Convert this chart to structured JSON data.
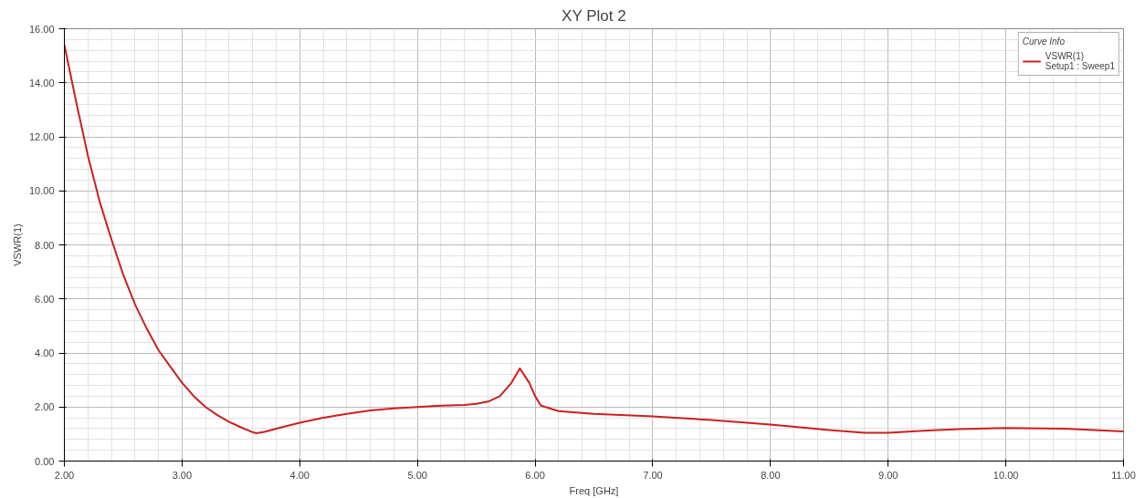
{
  "chart_data": {
    "type": "line",
    "title": "XY Plot 2",
    "xlabel": "Freq [GHz]",
    "ylabel": "VSWR(1)",
    "legend_title": "Curve Info",
    "legend": "top right",
    "grid": true,
    "line_style": "solid",
    "marker": "none",
    "xlim": [
      2,
      11
    ],
    "ylim": [
      0,
      16
    ],
    "xticks": [
      {
        "value": 2,
        "label": "2.00"
      },
      {
        "value": 3,
        "label": "3.00"
      },
      {
        "value": 4,
        "label": "4.00"
      },
      {
        "value": 5,
        "label": "5.00"
      },
      {
        "value": 6,
        "label": "6.00"
      },
      {
        "value": 7,
        "label": "7.00"
      },
      {
        "value": 8,
        "label": "8.00"
      },
      {
        "value": 9,
        "label": "9.00"
      },
      {
        "value": 10,
        "label": "10.00"
      },
      {
        "value": 11,
        "label": "11.00"
      }
    ],
    "yticks": [
      {
        "value": 0,
        "label": "0.00"
      },
      {
        "value": 2,
        "label": "2.00"
      },
      {
        "value": 4,
        "label": "4.00"
      },
      {
        "value": 6,
        "label": "6.00"
      },
      {
        "value": 8,
        "label": "8.00"
      },
      {
        "value": 10,
        "label": "10.00"
      },
      {
        "value": 12,
        "label": "12.00"
      },
      {
        "value": 14,
        "label": "14.00"
      },
      {
        "value": 16,
        "label": "16.00"
      }
    ],
    "x": [
      2.0,
      2.1,
      2.2,
      2.3,
      2.4,
      2.5,
      2.6,
      2.7,
      2.8,
      2.9,
      3.0,
      3.1,
      3.2,
      3.3,
      3.4,
      3.5,
      3.6,
      3.63,
      3.7,
      3.8,
      4.0,
      4.2,
      4.4,
      4.6,
      4.8,
      5.0,
      5.2,
      5.4,
      5.5,
      5.6,
      5.7,
      5.8,
      5.87,
      5.95,
      6.0,
      6.05,
      6.2,
      6.5,
      7.0,
      7.5,
      8.0,
      8.5,
      8.8,
      9.0,
      9.3,
      9.6,
      10.0,
      10.5,
      11.0
    ],
    "series": [
      {
        "name": "VSWR(1)\nSetup1 : Sweep1",
        "color": "#cc1f1f",
        "values": [
          15.4,
          13.3,
          11.3,
          9.6,
          8.2,
          6.9,
          5.8,
          4.9,
          4.1,
          3.5,
          2.9,
          2.4,
          2.0,
          1.7,
          1.45,
          1.25,
          1.07,
          1.03,
          1.08,
          1.2,
          1.42,
          1.6,
          1.75,
          1.87,
          1.95,
          2.0,
          2.05,
          2.08,
          2.12,
          2.2,
          2.4,
          2.9,
          3.43,
          2.9,
          2.4,
          2.05,
          1.85,
          1.75,
          1.65,
          1.52,
          1.35,
          1.15,
          1.05,
          1.05,
          1.12,
          1.18,
          1.22,
          1.2,
          1.1
        ]
      }
    ]
  }
}
